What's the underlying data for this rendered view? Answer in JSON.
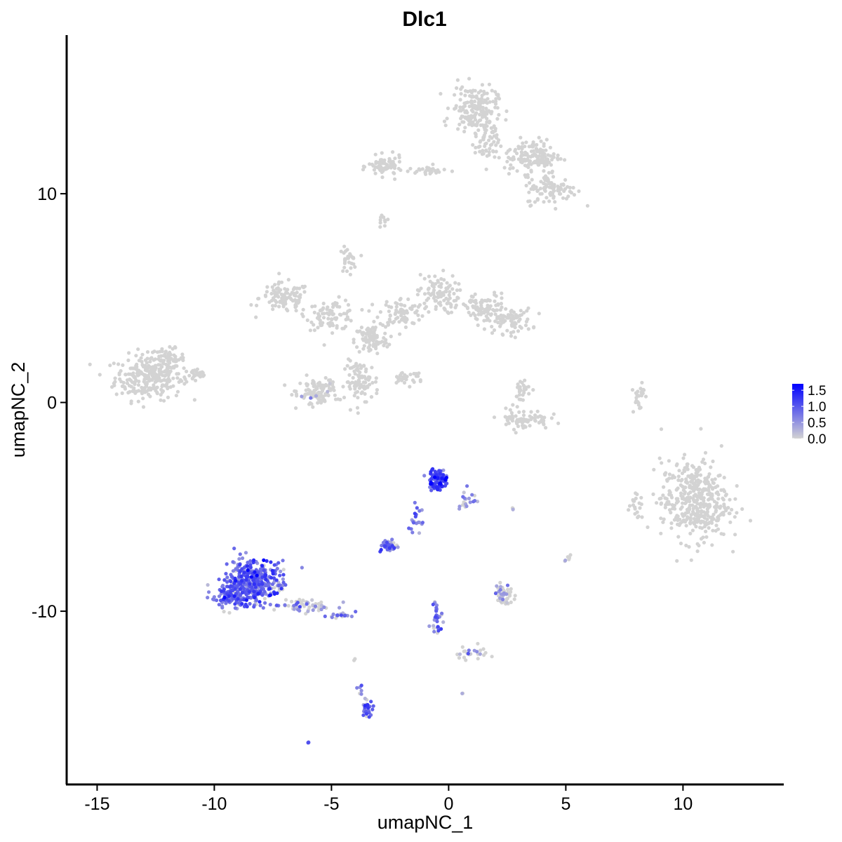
{
  "chart_data": {
    "type": "scatter",
    "title": "Dlc1",
    "xlabel": "umapNC_1",
    "ylabel": "umapNC_2",
    "xlim": [
      -16.3,
      14.3
    ],
    "ylim": [
      -18.3,
      17.6
    ],
    "x_ticks": [
      -15,
      -10,
      -5,
      0,
      5,
      10
    ],
    "x_tick_labels": [
      "-15",
      "-10",
      "-5",
      "0",
      "5",
      "10"
    ],
    "y_ticks": [
      10,
      0,
      -10
    ],
    "y_tick_labels": [
      "10",
      "0",
      "-10"
    ],
    "grid": false,
    "legend": {
      "placement": "right",
      "type": "colorbar",
      "breaks": [
        1.5,
        1.0,
        0.5,
        0.0
      ],
      "break_labels": [
        "1.5",
        "1.0",
        "0.5",
        "0.0"
      ],
      "range": [
        0.0,
        1.7
      ]
    },
    "colors": {
      "low": "#d3d3d3",
      "high": "#0000ff",
      "axis": "#000000"
    },
    "clusters": [
      {
        "center": [
          -12.8,
          1.2
        ],
        "spread": [
          1.2,
          0.9
        ],
        "n": 260,
        "expr": 0.0
      },
      {
        "center": [
          -12.0,
          2.1
        ],
        "spread": [
          0.6,
          0.4
        ],
        "n": 60,
        "expr": 0.0
      },
      {
        "center": [
          -10.8,
          1.3
        ],
        "spread": [
          0.5,
          0.25
        ],
        "n": 25,
        "expr": 0.0
      },
      {
        "center": [
          -7.0,
          5.0
        ],
        "spread": [
          0.9,
          0.6
        ],
        "n": 100,
        "expr": 0.0
      },
      {
        "center": [
          -5.0,
          4.2
        ],
        "spread": [
          0.9,
          0.6
        ],
        "n": 90,
        "expr": 0.0
      },
      {
        "center": [
          -4.3,
          6.8
        ],
        "spread": [
          0.3,
          0.5
        ],
        "n": 30,
        "expr": 0.0
      },
      {
        "center": [
          -3.3,
          3.0
        ],
        "spread": [
          0.6,
          0.6
        ],
        "n": 90,
        "expr": 0.0
      },
      {
        "center": [
          -2.0,
          4.3
        ],
        "spread": [
          0.8,
          0.6
        ],
        "n": 80,
        "expr": 0.0
      },
      {
        "center": [
          -0.5,
          5.2
        ],
        "spread": [
          0.7,
          0.8
        ],
        "n": 90,
        "expr": 0.0
      },
      {
        "center": [
          1.5,
          4.5
        ],
        "spread": [
          0.9,
          0.6
        ],
        "n": 90,
        "expr": 0.0
      },
      {
        "center": [
          2.6,
          3.9
        ],
        "spread": [
          0.8,
          0.5
        ],
        "n": 80,
        "expr": 0.0
      },
      {
        "center": [
          -3.7,
          1.0
        ],
        "spread": [
          0.6,
          0.8
        ],
        "n": 90,
        "expr": 0.0
      },
      {
        "center": [
          -5.6,
          0.5
        ],
        "spread": [
          0.7,
          0.6
        ],
        "n": 110,
        "expr": 0.03
      },
      {
        "center": [
          -1.8,
          1.2
        ],
        "spread": [
          0.6,
          0.3
        ],
        "n": 30,
        "expr": 0.0
      },
      {
        "center": [
          -2.7,
          11.3
        ],
        "spread": [
          0.6,
          0.4
        ],
        "n": 70,
        "expr": 0.0
      },
      {
        "center": [
          -0.8,
          11.1
        ],
        "spread": [
          0.7,
          0.2
        ],
        "n": 30,
        "expr": 0.0
      },
      {
        "center": [
          1.1,
          14.1
        ],
        "spread": [
          0.8,
          0.9
        ],
        "n": 170,
        "expr": 0.0
      },
      {
        "center": [
          1.6,
          12.5
        ],
        "spread": [
          0.4,
          0.9
        ],
        "n": 60,
        "expr": 0.0
      },
      {
        "center": [
          3.6,
          11.8
        ],
        "spread": [
          1.0,
          0.7
        ],
        "n": 150,
        "expr": 0.0
      },
      {
        "center": [
          4.4,
          10.2
        ],
        "spread": [
          0.9,
          0.6
        ],
        "n": 100,
        "expr": 0.0
      },
      {
        "center": [
          -2.8,
          8.8
        ],
        "spread": [
          0.2,
          0.3
        ],
        "n": 10,
        "expr": 0.0
      },
      {
        "center": [
          3.2,
          -0.8
        ],
        "spread": [
          0.9,
          0.4
        ],
        "n": 70,
        "expr": 0.0
      },
      {
        "center": [
          3.1,
          0.6
        ],
        "spread": [
          0.4,
          0.5
        ],
        "n": 30,
        "expr": 0.0
      },
      {
        "center": [
          8.1,
          0.3
        ],
        "spread": [
          0.2,
          0.7
        ],
        "n": 25,
        "expr": 0.0
      },
      {
        "center": [
          10.5,
          -4.7
        ],
        "spread": [
          1.2,
          1.6
        ],
        "n": 420,
        "expr": 0.0
      },
      {
        "center": [
          8.0,
          -5.0
        ],
        "spread": [
          0.25,
          0.5
        ],
        "n": 20,
        "expr": 0.0
      },
      {
        "center": [
          -8.3,
          -8.6
        ],
        "spread": [
          0.9,
          0.9
        ],
        "n": 380,
        "expr": 0.85
      },
      {
        "center": [
          -9.3,
          -9.2
        ],
        "spread": [
          0.7,
          0.5
        ],
        "n": 120,
        "expr": 0.8
      },
      {
        "center": [
          -6.0,
          -9.8
        ],
        "spread": [
          0.9,
          0.3
        ],
        "n": 60,
        "expr": 0.35
      },
      {
        "center": [
          -4.6,
          -10.2
        ],
        "spread": [
          0.4,
          0.2
        ],
        "n": 20,
        "expr": 0.7
      },
      {
        "center": [
          -0.5,
          -3.7
        ],
        "spread": [
          0.35,
          0.4
        ],
        "n": 110,
        "expr": 1.0
      },
      {
        "center": [
          0.7,
          -4.6
        ],
        "spread": [
          0.4,
          0.4
        ],
        "n": 20,
        "expr": 0.6
      },
      {
        "center": [
          -1.4,
          -5.6
        ],
        "spread": [
          0.25,
          0.6
        ],
        "n": 20,
        "expr": 0.75
      },
      {
        "center": [
          -2.5,
          -6.9
        ],
        "spread": [
          0.3,
          0.2
        ],
        "n": 40,
        "expr": 0.85
      },
      {
        "center": [
          -0.5,
          -10.4
        ],
        "spread": [
          0.2,
          0.8
        ],
        "n": 30,
        "expr": 0.7
      },
      {
        "center": [
          1.3,
          -12.0
        ],
        "spread": [
          0.8,
          0.3
        ],
        "n": 25,
        "expr": 0.15
      },
      {
        "center": [
          2.4,
          -9.2
        ],
        "spread": [
          0.4,
          0.4
        ],
        "n": 50,
        "expr": 0.3
      },
      {
        "center": [
          -3.5,
          -14.7
        ],
        "spread": [
          0.2,
          0.4
        ],
        "n": 30,
        "expr": 0.8
      },
      {
        "center": [
          -3.8,
          -13.7
        ],
        "spread": [
          0.1,
          0.3
        ],
        "n": 6,
        "expr": 0.7
      },
      {
        "center": [
          -6.0,
          -16.3
        ],
        "spread": [
          0.05,
          0.05
        ],
        "n": 3,
        "expr": 0.9
      },
      {
        "center": [
          5.1,
          -7.5
        ],
        "spread": [
          0.1,
          0.2
        ],
        "n": 6,
        "expr": 0.2
      },
      {
        "center": [
          2.8,
          -5.1
        ],
        "spread": [
          0.1,
          0.05
        ],
        "n": 3,
        "expr": 0.6
      },
      {
        "center": [
          0.6,
          -13.9
        ],
        "spread": [
          0.05,
          0.05
        ],
        "n": 2,
        "expr": 0.7
      },
      {
        "center": [
          -4.0,
          -12.3
        ],
        "spread": [
          0.05,
          0.05
        ],
        "n": 2,
        "expr": 0.3
      }
    ]
  }
}
